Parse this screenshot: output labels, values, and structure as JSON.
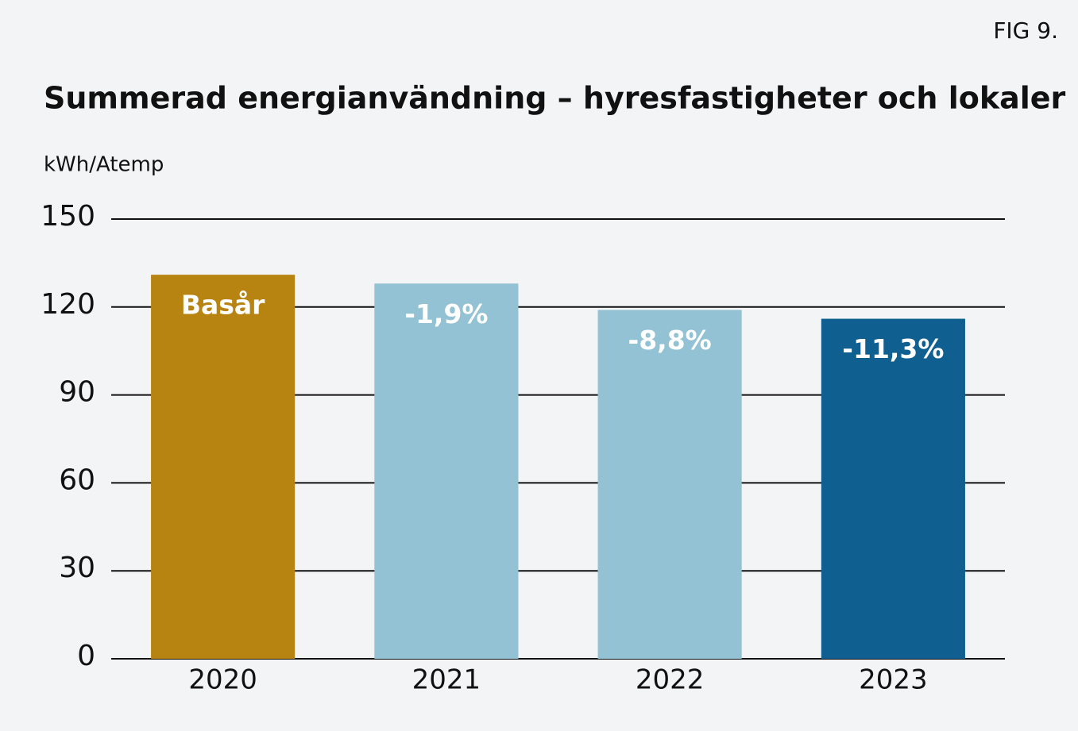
{
  "fig_label": "FIG 9.",
  "chart_data": {
    "type": "bar",
    "title": "Summerad energianvändning – hyresfastigheter och lokaler",
    "y_label": "kWh/Atemp",
    "categories": [
      "2020",
      "2021",
      "2022",
      "2023"
    ],
    "values": [
      131,
      128,
      119,
      116
    ],
    "bar_labels": [
      "Basår",
      "-1,9%",
      "-8,8%",
      "-11,3%"
    ],
    "colors": [
      "#b78412",
      "#92c2d3",
      "#92c2d3",
      "#0f6090"
    ],
    "ylim": [
      0,
      150
    ],
    "yticks": [
      0,
      30,
      60,
      90,
      120,
      150
    ],
    "grid": true
  }
}
